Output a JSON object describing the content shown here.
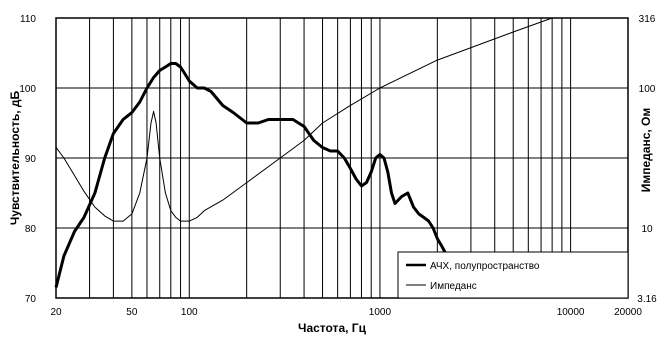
{
  "chart_data": {
    "type": "line",
    "xlabel": "Частота, Гц",
    "ylabel": "Чувствительность, дБ",
    "y2label": "Импеданс, Ом",
    "xscale": "log",
    "xlim": [
      20,
      20000
    ],
    "ylim": [
      70,
      110
    ],
    "y2scale": "log",
    "y2lim": [
      3.16,
      316
    ],
    "grid": true,
    "legend_position": "bottom-right",
    "x_ticks": [
      "20",
      "50",
      "100",
      "1000",
      "10000",
      "20000"
    ],
    "y_ticks": [
      "70",
      "80",
      "90",
      "100",
      "110"
    ],
    "y2_ticks": [
      "3.16",
      "10",
      "100",
      "316"
    ],
    "series": [
      {
        "name": "АЧХ, полупространство",
        "axis": "left",
        "x": [
          20,
          22,
          25,
          28,
          32,
          36,
          40,
          45,
          50,
          55,
          60,
          65,
          70,
          75,
          80,
          85,
          90,
          95,
          100,
          110,
          120,
          130,
          150,
          170,
          200,
          230,
          260,
          300,
          350,
          400,
          450,
          500,
          550,
          600,
          650,
          700,
          750,
          800,
          850,
          900,
          950,
          1000,
          1050,
          1100,
          1150,
          1200,
          1300,
          1400,
          1500,
          1600,
          1700,
          1800,
          1900,
          2000,
          2100,
          2200
        ],
        "y": [
          71.5,
          76,
          79.5,
          81.5,
          85,
          90,
          93.5,
          95.5,
          96.5,
          98,
          100,
          101.5,
          102.5,
          103,
          103.5,
          103.5,
          103,
          102,
          101,
          100,
          100,
          99.5,
          97.5,
          96.5,
          95,
          95,
          95.5,
          95.5,
          95.5,
          94.5,
          92.5,
          91.5,
          91,
          91,
          90,
          88.5,
          87,
          86,
          86.5,
          88,
          90,
          90.5,
          90,
          88,
          85,
          83.5,
          84.5,
          85,
          83,
          82,
          81.5,
          81,
          80,
          78.5,
          77.5,
          76.5
        ]
      },
      {
        "name": "Импеданс",
        "axis": "right",
        "x": [
          20,
          22,
          25,
          28,
          32,
          36,
          40,
          45,
          50,
          55,
          60,
          63,
          65,
          67,
          70,
          75,
          80,
          85,
          90,
          95,
          100,
          110,
          120,
          150,
          200,
          300,
          400,
          500,
          700,
          1000,
          2000,
          5000,
          8000
        ],
        "y": [
          37.7,
          31.6,
          23.7,
          18.3,
          14.1,
          12.2,
          11.2,
          11.2,
          12.6,
          17.8,
          31.6,
          56.2,
          68,
          56.2,
          31.6,
          17.8,
          13.3,
          11.9,
          11.2,
          11.2,
          11.2,
          11.9,
          13.3,
          15.8,
          21.1,
          31.6,
          42.2,
          56.2,
          75,
          100,
          158,
          251,
          316
        ]
      }
    ]
  },
  "legend": {
    "items": [
      "АЧХ, полупространство",
      "Импеданс"
    ]
  }
}
